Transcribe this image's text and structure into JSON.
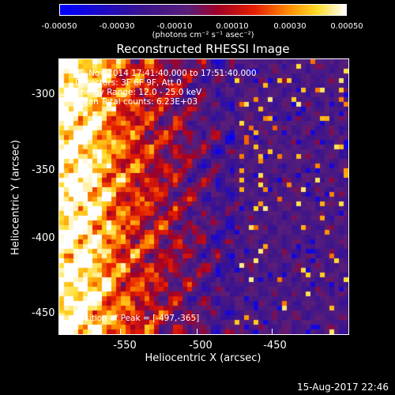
{
  "colorbar": {
    "ticks": [
      "-0.00050",
      "-0.00030",
      "-0.00010",
      "0.00010",
      "0.00030",
      "0.00050"
    ],
    "unit_label": "(photons cm⁻² s⁻¹ asec⁻²)"
  },
  "title": "Reconstructed RHESSI Image",
  "info": {
    "line1": "29-Nov-2014 17:41:40.000 to 17:51:40.000",
    "line2": "Detectors: 3F 6F 9F, Att 0",
    "line3": "Energy Range: 12.0 - 25.0 keV",
    "line4": "Clean     Total counts: 6.23E+03",
    "peak": "Position of Peak = [-497,-365]"
  },
  "axes": {
    "xlabel": "Heliocentric X (arcsec)",
    "ylabel": "Heliocentric Y (arcsec)",
    "xticks": [
      "-550",
      "-500",
      "-450"
    ],
    "yticks": [
      "-300",
      "-350",
      "-400",
      "-450"
    ]
  },
  "footer": {
    "date": "15-Aug-2017 22:46"
  }
}
